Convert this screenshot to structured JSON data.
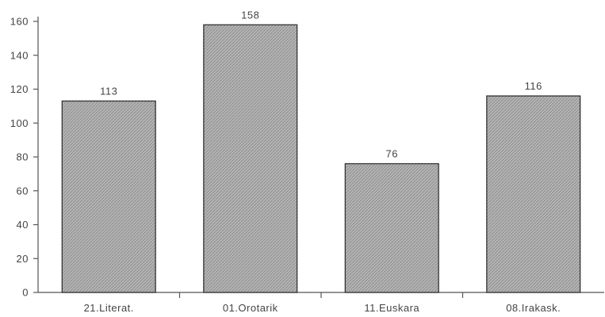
{
  "chart_data": {
    "type": "bar",
    "title": "",
    "xlabel": "",
    "ylabel": "",
    "categories": [
      "21.Literat.",
      "01.Orotarik",
      "11.Euskara",
      "08.Irakask."
    ],
    "values": [
      113,
      158,
      76,
      116
    ],
    "data_labels": [
      "113",
      "158",
      "76",
      "116"
    ],
    "ylim": [
      0,
      160
    ],
    "yticks": [
      0,
      20,
      40,
      60,
      80,
      100,
      120,
      140,
      160
    ],
    "ytick_labels": [
      "0",
      "20",
      "40",
      "60",
      "80",
      "100",
      "120",
      "140",
      "160"
    ],
    "grid": false,
    "legend": "none",
    "colors": {
      "bar_fill": "#b4b4b4",
      "bar_hatch": "#8f8f8f",
      "bar_edge": "#333333",
      "axis": "#555555",
      "text": "#444444"
    }
  }
}
